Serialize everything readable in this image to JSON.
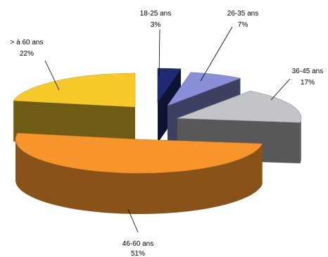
{
  "chart_data": {
    "type": "pie",
    "style": "3d-exploded",
    "slices": [
      {
        "label": "18-25 ans",
        "value_label": "3%",
        "value": 3,
        "color": "#202a72",
        "explode": true
      },
      {
        "label": "26-35 ans",
        "value_label": "7%",
        "value": 7,
        "color": "#8a8fd8",
        "explode": true
      },
      {
        "label": "36-45 ans",
        "value_label": "17%",
        "value": 17,
        "color": "#c3c4c8",
        "explode": true
      },
      {
        "label": "46-60 ans",
        "value_label": "51%",
        "value": 51,
        "color": "#f7952c",
        "explode": true
      },
      {
        "label": "> à 60 ans",
        "value_label": "22%",
        "value": 22,
        "color": "#f7ca2a",
        "explode": true
      }
    ]
  }
}
